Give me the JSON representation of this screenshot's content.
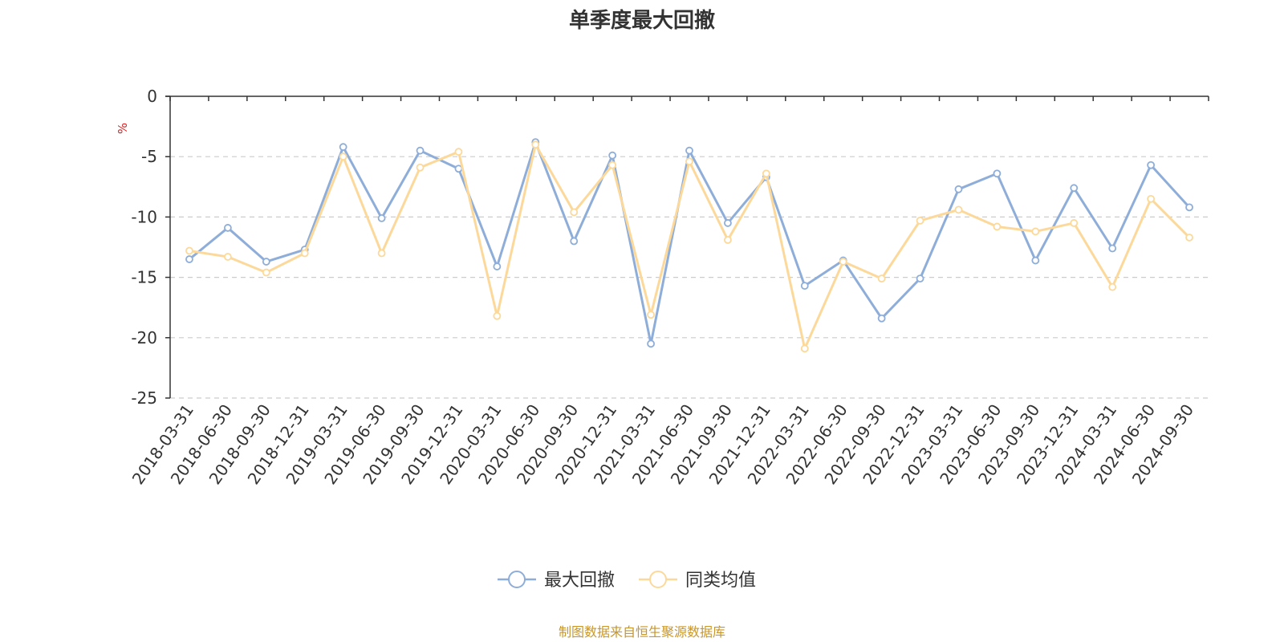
{
  "chart_data": {
    "type": "line",
    "title": "单季度最大回撤",
    "ylabel": "%",
    "xlabel": "",
    "ylim": [
      -25,
      0
    ],
    "yticks": [
      0,
      -5,
      -10,
      -15,
      -20,
      -25
    ],
    "grid": true,
    "legend_position": "bottom",
    "categories": [
      "2018-03-31",
      "2018-06-30",
      "2018-09-30",
      "2018-12-31",
      "2019-03-31",
      "2019-06-30",
      "2019-09-30",
      "2019-12-31",
      "2020-03-31",
      "2020-06-30",
      "2020-09-30",
      "2020-12-31",
      "2021-03-31",
      "2021-06-30",
      "2021-09-30",
      "2021-12-31",
      "2022-03-31",
      "2022-06-30",
      "2022-09-30",
      "2022-12-31",
      "2023-03-31",
      "2023-06-30",
      "2023-09-30",
      "2023-12-31",
      "2024-03-31",
      "2024-06-30",
      "2024-09-30"
    ],
    "series": [
      {
        "name": "最大回撤",
        "color": "#8eaed9",
        "values": [
          -13.5,
          -10.9,
          -13.7,
          -12.7,
          -4.2,
          -10.1,
          -4.5,
          -6.0,
          -14.1,
          -3.8,
          -12.0,
          -4.9,
          -20.5,
          -4.5,
          -10.5,
          -6.7,
          -15.7,
          -13.6,
          -18.4,
          -15.1,
          -7.7,
          -6.4,
          -13.6,
          -7.6,
          -12.6,
          -5.7,
          -9.2
        ]
      },
      {
        "name": "同类均值",
        "color": "#fcd99a",
        "values": [
          -12.8,
          -13.3,
          -14.6,
          -13.0,
          -5.0,
          -13.0,
          -5.9,
          -4.6,
          -18.2,
          -4.0,
          -9.6,
          -5.7,
          -18.1,
          -5.4,
          -11.9,
          -6.4,
          -20.9,
          -13.7,
          -15.1,
          -10.3,
          -9.4,
          -10.8,
          -11.2,
          -10.5,
          -15.8,
          -8.5,
          -11.7
        ]
      }
    ],
    "source_note": "制图数据来自恒生聚源数据库"
  }
}
